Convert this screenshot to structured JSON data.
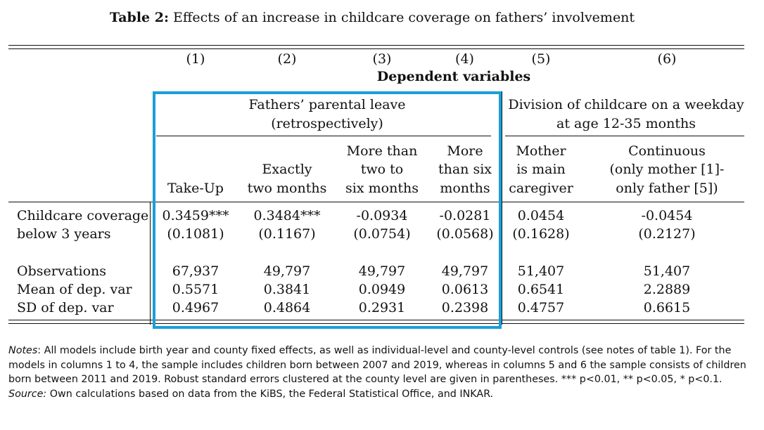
{
  "title": {
    "label": "Table 2:",
    "text": "Effects of an increase in childcare coverage on fathers’ involvement"
  },
  "column_numbers": [
    "(1)",
    "(2)",
    "(3)",
    "(4)",
    "(5)",
    "(6)"
  ],
  "dependent_variables_label": "Dependent variables",
  "groups": {
    "left": [
      "Fathers’ parental leave",
      "(retrospectively)"
    ],
    "right": [
      "Division of childcare on a weekday",
      "at age 12-35 months"
    ]
  },
  "column_headers": [
    [
      "",
      "",
      "Take-Up"
    ],
    [
      "",
      "Exactly",
      "two months"
    ],
    [
      "More than",
      "two to",
      "six months"
    ],
    [
      "More",
      "than six",
      "months"
    ],
    [
      "Mother",
      "is main",
      "caregiver"
    ],
    [
      "Continuous",
      "(only mother [1]-",
      "only father [5])"
    ]
  ],
  "rows": {
    "coefficient": {
      "label": [
        "Childcare coverage",
        "below 3 years"
      ],
      "values": [
        "0.3459***",
        "0.3484***",
        "-0.0934",
        "-0.0281",
        "0.0454",
        "-0.0454"
      ],
      "se": [
        "(0.1081)",
        "(0.1167)",
        "(0.0754)",
        "(0.0568)",
        "(0.1628)",
        "(0.2127)"
      ]
    },
    "observations": {
      "label": "Observations",
      "values": [
        "67,937",
        "49,797",
        "49,797",
        "49,797",
        "51,407",
        "51,407"
      ]
    },
    "mean": {
      "label": "Mean of dep. var",
      "values": [
        "0.5571",
        "0.3841",
        "0.0949",
        "0.0613",
        "0.6541",
        "2.2889"
      ]
    },
    "sd": {
      "label": "SD of dep. var",
      "values": [
        "0.4967",
        "0.4864",
        "0.2931",
        "0.2398",
        "0.4757",
        "0.6615"
      ]
    }
  },
  "notes": {
    "notes_label": "Notes",
    "notes_text": ": All models include birth year and county fixed effects, as well as individual-level and county-level controls (see notes of table 1). For the models in columns 1 to 4, the sample includes children born between 2007 and 2019, whereas in columns 5 and 6 the sample consists of children born between 2011 and 2019. Robust standard errors clustered at the county level are given in parentheses. *** p<0.01, ** p<0.05, * p<0.1.",
    "source_label": "Source:",
    "source_text": " Own calculations based on data from the KiBS, the Federal Statistical Office, and INKAR."
  },
  "colors": {
    "highlight_border": "#1a9fd9",
    "text": "#111111"
  }
}
